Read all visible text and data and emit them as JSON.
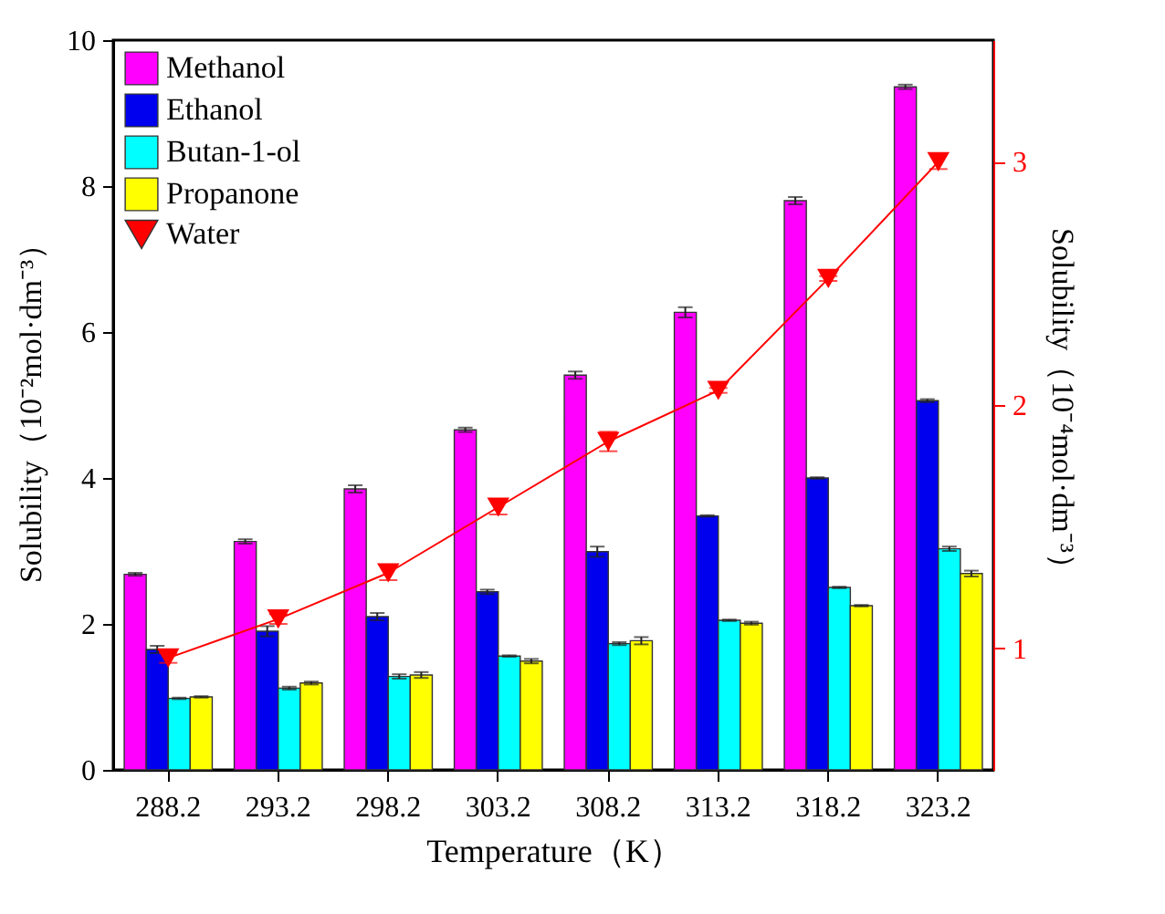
{
  "chart_data": {
    "type": "bar",
    "xlabel": "Temperature（K）",
    "ylabel": "Solubility（10⁻²mol·dm⁻³）",
    "y2label": "Solubility（10⁻⁴mol·dm⁻³）",
    "categories": [
      "288.2",
      "293.2",
      "298.2",
      "303.2",
      "308.2",
      "313.2",
      "318.2",
      "323.2"
    ],
    "series": [
      {
        "name": "Methanol",
        "color": "#ff00ff",
        "values": [
          2.68,
          3.13,
          3.85,
          4.66,
          5.41,
          6.27,
          7.8,
          9.36
        ],
        "errors": [
          0.02,
          0.03,
          0.05,
          0.03,
          0.05,
          0.07,
          0.05,
          0.03
        ]
      },
      {
        "name": "Ethanol",
        "color": "#0000ee",
        "values": [
          1.65,
          1.9,
          2.1,
          2.44,
          2.99,
          3.48,
          4.0,
          5.06
        ],
        "errors": [
          0.05,
          0.07,
          0.05,
          0.03,
          0.07,
          0.01,
          0.01,
          0.02
        ]
      },
      {
        "name": "Butan-1-ol",
        "color": "#00ffff",
        "values": [
          0.98,
          1.12,
          1.28,
          1.56,
          1.73,
          2.05,
          2.5,
          3.03
        ],
        "errors": [
          0.01,
          0.02,
          0.03,
          0.01,
          0.02,
          0.01,
          0.01,
          0.03
        ]
      },
      {
        "name": "Propanone",
        "color": "#ffff00",
        "values": [
          1.0,
          1.19,
          1.3,
          1.49,
          1.77,
          2.01,
          2.25,
          2.69
        ],
        "errors": [
          0.01,
          0.02,
          0.04,
          0.03,
          0.05,
          0.02,
          0.01,
          0.04
        ]
      },
      {
        "name": "Water",
        "type": "line",
        "axis": "y2",
        "marker": "triangle",
        "color": "#ff0000",
        "values": [
          0.96,
          1.12,
          1.31,
          1.58,
          1.85,
          2.06,
          2.52,
          3.0
        ],
        "errors": [
          0.02,
          0.02,
          0.03,
          0.03,
          0.04,
          0.01,
          0.01,
          0.03
        ]
      }
    ],
    "ylim": [
      0,
      10
    ],
    "yticks": [
      0,
      2,
      4,
      6,
      8,
      10
    ],
    "y2lim": [
      0.5,
      3.5
    ],
    "y2ticks": [
      1,
      2,
      3
    ],
    "legend": "top left"
  }
}
